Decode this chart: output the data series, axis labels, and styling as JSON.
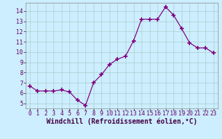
{
  "x": [
    0,
    1,
    2,
    3,
    4,
    5,
    6,
    7,
    8,
    9,
    10,
    11,
    12,
    13,
    14,
    15,
    16,
    17,
    18,
    19,
    20,
    21,
    22,
    23
  ],
  "y": [
    6.7,
    6.2,
    6.2,
    6.2,
    6.3,
    6.1,
    5.3,
    4.8,
    7.0,
    7.8,
    8.8,
    9.3,
    9.6,
    11.1,
    13.2,
    13.2,
    13.2,
    14.4,
    13.6,
    12.3,
    10.9,
    10.4,
    10.4,
    9.9
  ],
  "line_color": "#800080",
  "marker": "+",
  "marker_size": 5,
  "bg_color": "#cceeff",
  "grid_color": "#aacccc",
  "xlabel": "Windchill (Refroidissement éolien,°C)",
  "ylim": [
    4.5,
    14.8
  ],
  "yticks": [
    5,
    6,
    7,
    8,
    9,
    10,
    11,
    12,
    13,
    14
  ],
  "xlim": [
    -0.5,
    23.5
  ],
  "xticks": [
    0,
    1,
    2,
    3,
    4,
    5,
    6,
    7,
    8,
    9,
    10,
    11,
    12,
    13,
    14,
    15,
    16,
    17,
    18,
    19,
    20,
    21,
    22,
    23
  ],
  "label_fontsize": 7,
  "tick_fontsize": 6
}
